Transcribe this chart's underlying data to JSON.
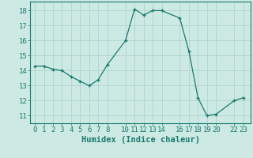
{
  "x": [
    0,
    1,
    2,
    3,
    4,
    5,
    6,
    7,
    8,
    10,
    11,
    12,
    13,
    14,
    16,
    17,
    18,
    19,
    20,
    22,
    23
  ],
  "y": [
    14.3,
    14.3,
    14.1,
    14.0,
    13.6,
    13.3,
    13.0,
    13.4,
    14.4,
    16.0,
    18.1,
    17.7,
    18.0,
    18.0,
    17.5,
    15.3,
    12.2,
    11.0,
    11.1,
    12.0,
    12.2
  ],
  "xlabel": "Humidex (Indice chaleur)",
  "xlim": [
    -0.5,
    23.8
  ],
  "ylim": [
    10.5,
    18.6
  ],
  "xticks": [
    0,
    1,
    2,
    3,
    4,
    5,
    6,
    7,
    8,
    10,
    11,
    12,
    13,
    14,
    16,
    17,
    18,
    19,
    20,
    22,
    23
  ],
  "yticks": [
    11,
    12,
    13,
    14,
    15,
    16,
    17,
    18
  ],
  "line_color": "#1a7a6e",
  "marker_color": "#1a7a6e",
  "bg_color": "#cce9e4",
  "grid_color": "#afd4ce",
  "axis_color": "#1a7a6e",
  "tick_fontsize": 6.5,
  "xlabel_fontsize": 7.5
}
